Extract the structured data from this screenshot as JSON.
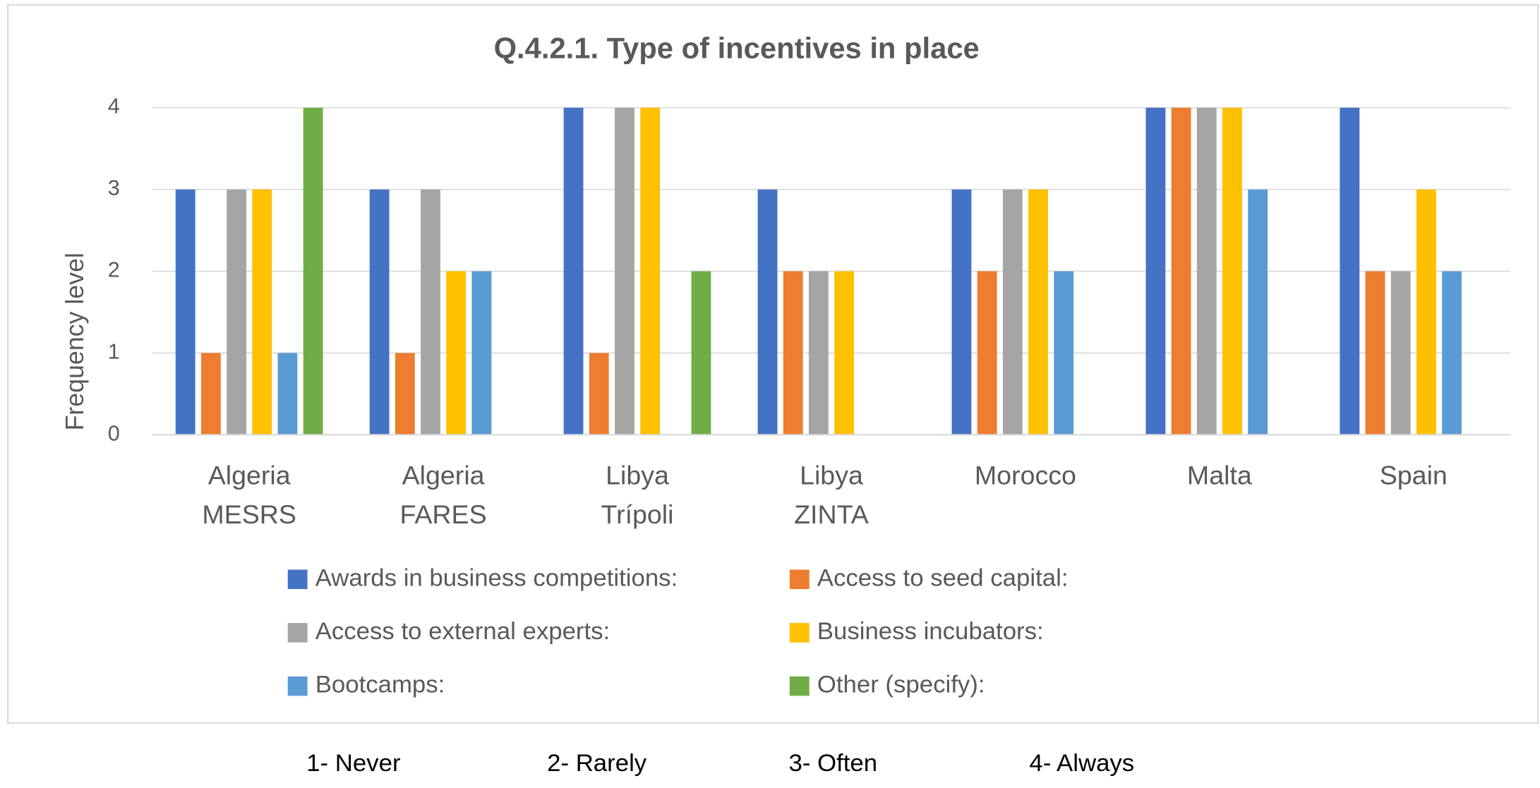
{
  "chart_data": {
    "type": "bar",
    "title": "Q.4.2.1. Type of incentives in place",
    "y_label": "Frequency level",
    "categories": [
      "Algeria MESRS",
      "Algeria FARES",
      "Libya Trípoli",
      "Libya ZINTA",
      "Morocco",
      "Malta",
      "Spain"
    ],
    "series": [
      {
        "name": "Awards in business competitions:",
        "color": "#4472c4",
        "values": [
          3,
          3,
          4,
          3,
          3,
          4,
          4
        ]
      },
      {
        "name": "Access to seed capital:",
        "color": "#ed7d31",
        "values": [
          1,
          1,
          1,
          2,
          2,
          4,
          2
        ]
      },
      {
        "name": "Access to external experts:",
        "color": "#a5a5a5",
        "values": [
          3,
          3,
          4,
          2,
          3,
          4,
          2
        ]
      },
      {
        "name": "Business incubators:",
        "color": "#ffc000",
        "values": [
          3,
          2,
          4,
          2,
          3,
          4,
          3
        ]
      },
      {
        "name": "Bootcamps:",
        "color": "#5b9bd5",
        "values": [
          1,
          2,
          null,
          null,
          2,
          3,
          2
        ]
      },
      {
        "name": "Other (specify):",
        "color": "#70ad47",
        "values": [
          4,
          null,
          2,
          null,
          null,
          null,
          null
        ]
      }
    ],
    "ylim": [
      0,
      4
    ],
    "yticks": [
      0,
      1,
      2,
      3,
      4
    ],
    "grid": true,
    "annotations": [
      "1- Never",
      "2- Rarely",
      "3- Often",
      "4- Always"
    ]
  }
}
